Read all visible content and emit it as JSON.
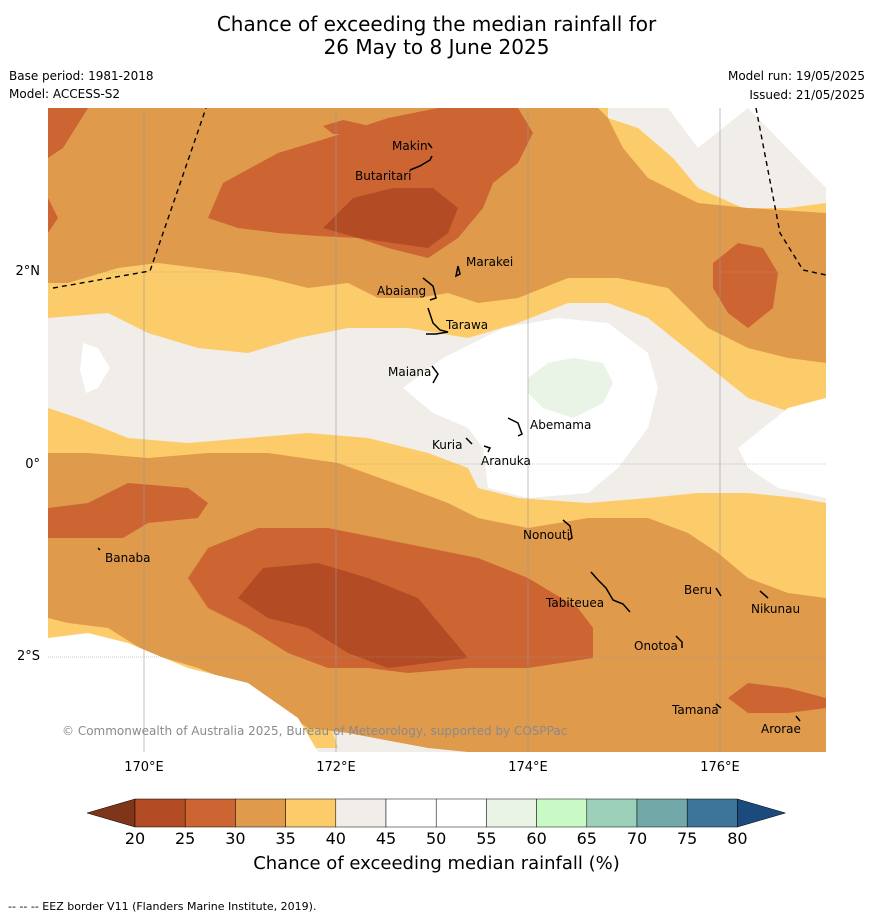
{
  "header": {
    "title_line1": "Chance of exceeding the median rainfall for",
    "title_line2": "26 May to 8 June 2025",
    "base_period": "Base period: 1981-2018",
    "model": "Model: ACCESS-S2",
    "model_run": "Model run: 19/05/2025",
    "issued": "Issued: 21/05/2025"
  },
  "map": {
    "latitude_labels": [
      "2°N",
      "0°",
      "2°S"
    ],
    "longitude_labels": [
      "170°E",
      "172°E",
      "174°E",
      "176°E"
    ],
    "islands": [
      "Makin",
      "Butaritari",
      "Marakei",
      "Abaiang",
      "Tarawa",
      "Maiana",
      "Abemama",
      "Kuria",
      "Aranuka",
      "Nonouti",
      "Banaba",
      "Tabiteuea",
      "Beru",
      "Nikunau",
      "Onotoa",
      "Tamana",
      "Arorae"
    ],
    "copyright": "© Commonwealth of Australia 2025, Bureau of Meteorology, supported by COSPPac"
  },
  "colorbar": {
    "ticks": [
      "20",
      "25",
      "30",
      "35",
      "40",
      "45",
      "50",
      "55",
      "60",
      "65",
      "70",
      "75",
      "80"
    ],
    "colors": [
      "#b34b24",
      "#cc6532",
      "#e09a4c",
      "#fdcc6a",
      "#f1ede8",
      "#ffffff",
      "#ffffff",
      "#eaf4e6",
      "#c9f9c4",
      "#9cd0b8",
      "#72a8a8",
      "#3c7598"
    ],
    "under_color": "#7f3519",
    "over_color": "#1b4a7c",
    "label": "Chance of exceeding median rainfall (%)"
  },
  "footer": {
    "legend_text": "--  --  -- EEZ border V11 (Flanders Marine Institute, 2019)."
  }
}
